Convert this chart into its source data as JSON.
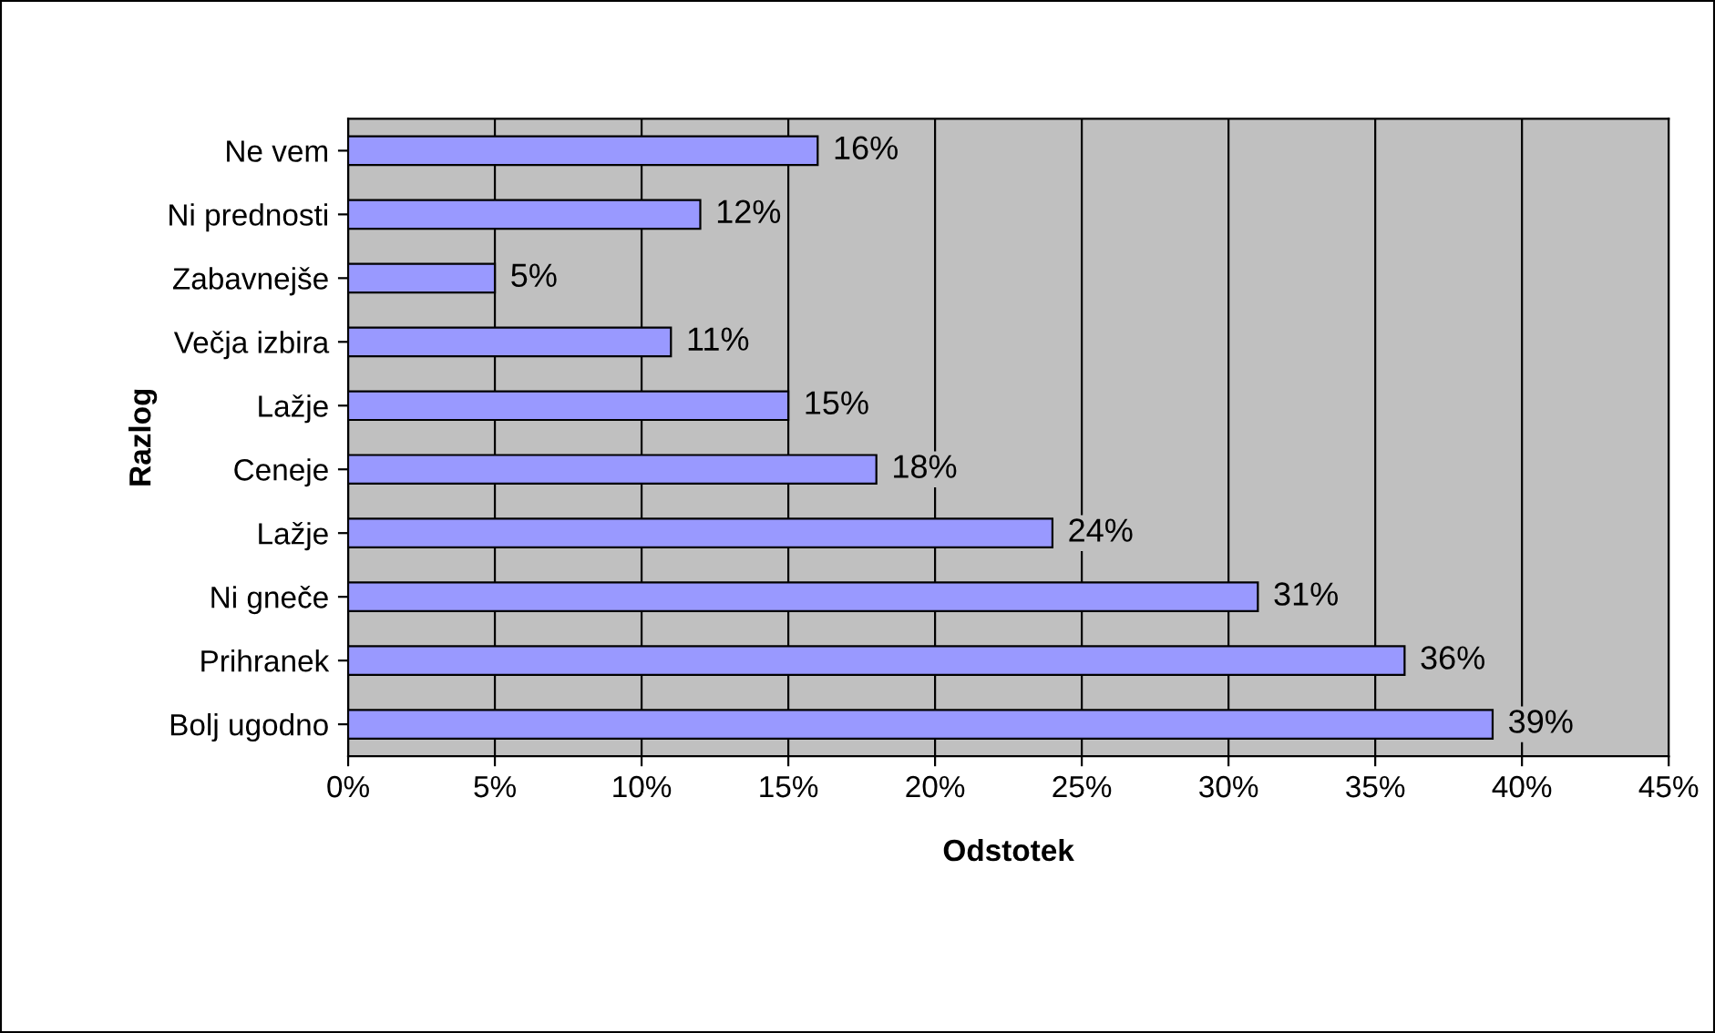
{
  "chart_data": {
    "type": "bar",
    "orientation": "horizontal",
    "xlabel": "Odstotek",
    "ylabel": "Razlog",
    "categories": [
      "Ne vem",
      "Ni prednosti",
      "Zabavnejše",
      "Večja izbira",
      "Lažje",
      "Ceneje",
      "Lažje",
      "Ni gneče",
      "Prihranek",
      "Bolj ugodno"
    ],
    "values": [
      16,
      12,
      5,
      11,
      15,
      18,
      24,
      31,
      36,
      39
    ],
    "value_labels": [
      "16%",
      "12%",
      "5%",
      "11%",
      "15%",
      "18%",
      "24%",
      "31%",
      "36%",
      "39%"
    ],
    "color": "#9999ff",
    "xlim": [
      0,
      45
    ],
    "xticks": [
      {
        "value": 0,
        "label": "0%"
      },
      {
        "value": 5,
        "label": "5%"
      },
      {
        "value": 10,
        "label": "10%"
      },
      {
        "value": 15,
        "label": "15%"
      },
      {
        "value": 20,
        "label": "20%"
      },
      {
        "value": 25,
        "label": "25%"
      },
      {
        "value": 30,
        "label": "30%"
      },
      {
        "value": 35,
        "label": "35%"
      },
      {
        "value": 40,
        "label": "40%"
      },
      {
        "value": 45,
        "label": "45%"
      }
    ],
    "grid": "x"
  }
}
